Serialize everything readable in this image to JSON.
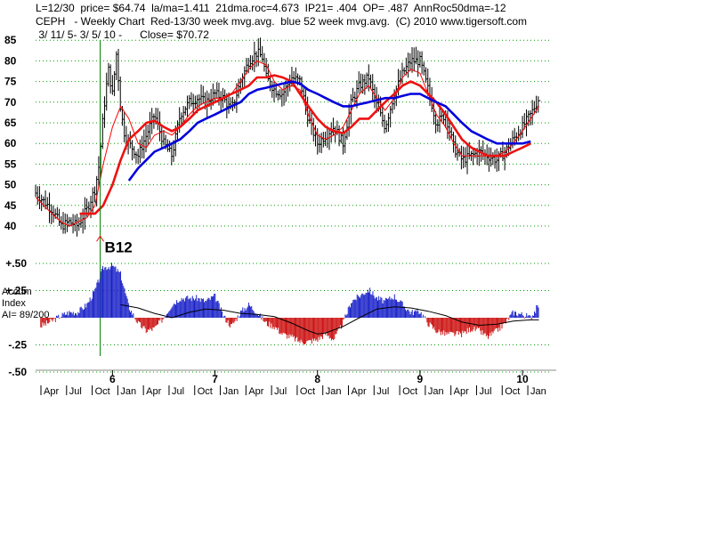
{
  "header": {
    "line1": "L=12/30  price= $64.74  la/ma=1.411  21dma.roc=4.673  IP21= .404  OP= .487  AnnRoc50dma=-12",
    "line2": "CEPH   - Weekly Chart  Red-13/30 week mvg.avg.  blue 52 week mvg.avg.  (C) 2010 www.tigersoft.com",
    "line3": " 3/ 11/ 5- 3/ 5/ 10 -      Close= $70.72"
  },
  "colors": {
    "price": "#000000",
    "ma13": "#ff0000",
    "ma30": "#ee1111",
    "ma52": "#0000dd",
    "accum_pos": "#1a22c8",
    "accum_neg": "#cc1111",
    "signal_line": "#008000",
    "grid": "#00a000"
  },
  "chart_data": [
    {
      "type": "line",
      "title": "",
      "price_ticks": [
        85,
        80,
        75,
        70,
        65,
        60,
        55,
        50,
        45,
        40
      ],
      "ylim": [
        37,
        86
      ],
      "year_labels": [
        {
          "x": 5.92,
          "label": "6"
        },
        {
          "x": 6.92,
          "label": "7"
        },
        {
          "x": 7.92,
          "label": "8"
        },
        {
          "x": 8.92,
          "label": "9"
        },
        {
          "x": 9.92,
          "label": "10"
        }
      ],
      "month_labels": [
        "Apr",
        "Jul",
        "Oct",
        "Jan",
        "Apr",
        "Jul",
        "Oct",
        "Jan",
        "Apr",
        "Jul",
        "Oct",
        "Jan",
        "Apr",
        "Jul",
        "Oct",
        "Jan",
        "Apr",
        "Jul",
        "Oct",
        "Jan"
      ],
      "xlim": [
        5.17,
        10.18
      ],
      "signal": {
        "label": "B12",
        "x": 5.8,
        "price": 38
      },
      "price_close": [
        [
          5.17,
          48
        ],
        [
          5.25,
          46
        ],
        [
          5.33,
          44
        ],
        [
          5.42,
          40
        ],
        [
          5.5,
          41
        ],
        [
          5.58,
          40
        ],
        [
          5.67,
          44
        ],
        [
          5.75,
          49
        ],
        [
          5.79,
          55
        ],
        [
          5.83,
          67
        ],
        [
          5.88,
          78
        ],
        [
          5.92,
          72
        ],
        [
          5.96,
          82
        ],
        [
          6.0,
          68
        ],
        [
          6.04,
          62
        ],
        [
          6.08,
          60
        ],
        [
          6.17,
          57
        ],
        [
          6.25,
          62
        ],
        [
          6.33,
          67
        ],
        [
          6.42,
          60
        ],
        [
          6.5,
          57
        ],
        [
          6.58,
          67
        ],
        [
          6.67,
          70
        ],
        [
          6.75,
          71
        ],
        [
          6.83,
          70
        ],
        [
          6.92,
          72
        ],
        [
          7.0,
          71
        ],
        [
          7.08,
          68
        ],
        [
          7.17,
          75
        ],
        [
          7.25,
          80
        ],
        [
          7.33,
          82
        ],
        [
          7.38,
          81
        ],
        [
          7.42,
          76
        ],
        [
          7.5,
          73
        ],
        [
          7.58,
          72
        ],
        [
          7.67,
          76
        ],
        [
          7.75,
          75
        ],
        [
          7.83,
          66
        ],
        [
          7.92,
          60
        ],
        [
          8.0,
          62
        ],
        [
          8.08,
          64
        ],
        [
          8.17,
          60
        ],
        [
          8.25,
          70
        ],
        [
          8.33,
          74
        ],
        [
          8.42,
          76
        ],
        [
          8.5,
          69
        ],
        [
          8.58,
          64
        ],
        [
          8.67,
          72
        ],
        [
          8.75,
          77
        ],
        [
          8.83,
          80
        ],
        [
          8.92,
          80
        ],
        [
          9.0,
          73
        ],
        [
          9.08,
          65
        ],
        [
          9.17,
          67
        ],
        [
          9.25,
          59
        ],
        [
          9.33,
          56
        ],
        [
          9.42,
          57
        ],
        [
          9.5,
          58
        ],
        [
          9.58,
          57
        ],
        [
          9.67,
          56
        ],
        [
          9.75,
          58
        ],
        [
          9.83,
          61
        ],
        [
          9.92,
          64
        ],
        [
          10.0,
          67
        ],
        [
          10.08,
          71
        ]
      ],
      "ma_13": [
        [
          5.17,
          47
        ],
        [
          5.25,
          45
        ],
        [
          5.33,
          43
        ],
        [
          5.42,
          41
        ],
        [
          5.5,
          40
        ],
        [
          5.58,
          41
        ],
        [
          5.67,
          42
        ],
        [
          5.75,
          45
        ],
        [
          5.83,
          55
        ],
        [
          5.92,
          64
        ],
        [
          6.0,
          69
        ],
        [
          6.08,
          66
        ],
        [
          6.17,
          60
        ],
        [
          6.25,
          59
        ],
        [
          6.33,
          62
        ],
        [
          6.42,
          63
        ],
        [
          6.5,
          62
        ],
        [
          6.58,
          64
        ],
        [
          6.67,
          67
        ],
        [
          6.75,
          69
        ],
        [
          6.83,
          70
        ],
        [
          6.92,
          71
        ],
        [
          7.0,
          71
        ],
        [
          7.08,
          72
        ],
        [
          7.17,
          75
        ],
        [
          7.25,
          78
        ],
        [
          7.33,
          80
        ],
        [
          7.42,
          79
        ],
        [
          7.5,
          75
        ],
        [
          7.58,
          73
        ],
        [
          7.67,
          74
        ],
        [
          7.75,
          73
        ],
        [
          7.83,
          67
        ],
        [
          7.92,
          62
        ],
        [
          8.0,
          61
        ],
        [
          8.08,
          62
        ],
        [
          8.17,
          64
        ],
        [
          8.25,
          68
        ],
        [
          8.33,
          72
        ],
        [
          8.42,
          74
        ],
        [
          8.5,
          71
        ],
        [
          8.58,
          68
        ],
        [
          8.67,
          71
        ],
        [
          8.75,
          76
        ],
        [
          8.83,
          78
        ],
        [
          8.92,
          77
        ],
        [
          9.0,
          72
        ],
        [
          9.08,
          67
        ],
        [
          9.17,
          64
        ],
        [
          9.25,
          60
        ],
        [
          9.33,
          57
        ],
        [
          9.42,
          57
        ],
        [
          9.5,
          57
        ],
        [
          9.58,
          57
        ],
        [
          9.67,
          57
        ],
        [
          9.75,
          58
        ],
        [
          9.83,
          60
        ],
        [
          9.92,
          63
        ],
        [
          10.0,
          66
        ],
        [
          10.08,
          69
        ]
      ],
      "ma_30": [
        [
          5.6,
          43
        ],
        [
          5.67,
          43
        ],
        [
          5.75,
          43
        ],
        [
          5.83,
          45
        ],
        [
          5.92,
          50
        ],
        [
          6.0,
          56
        ],
        [
          6.08,
          61
        ],
        [
          6.17,
          63
        ],
        [
          6.25,
          65
        ],
        [
          6.33,
          65.5
        ],
        [
          6.42,
          64
        ],
        [
          6.5,
          63
        ],
        [
          6.58,
          64
        ],
        [
          6.67,
          66
        ],
        [
          6.75,
          68
        ],
        [
          6.83,
          69
        ],
        [
          6.92,
          70
        ],
        [
          7.0,
          71
        ],
        [
          7.08,
          72
        ],
        [
          7.17,
          73
        ],
        [
          7.25,
          74
        ],
        [
          7.33,
          76
        ],
        [
          7.42,
          76
        ],
        [
          7.5,
          76.5
        ],
        [
          7.58,
          76
        ],
        [
          7.67,
          75
        ],
        [
          7.75,
          72
        ],
        [
          7.83,
          69
        ],
        [
          7.92,
          66
        ],
        [
          8.0,
          64
        ],
        [
          8.08,
          63
        ],
        [
          8.17,
          62.5
        ],
        [
          8.25,
          64
        ],
        [
          8.33,
          66
        ],
        [
          8.42,
          66
        ],
        [
          8.5,
          68
        ],
        [
          8.58,
          70
        ],
        [
          8.67,
          72
        ],
        [
          8.75,
          74
        ],
        [
          8.83,
          75
        ],
        [
          8.92,
          74
        ],
        [
          9.0,
          72
        ],
        [
          9.08,
          70
        ],
        [
          9.17,
          67
        ],
        [
          9.25,
          64
        ],
        [
          9.33,
          61
        ],
        [
          9.42,
          59
        ],
        [
          9.5,
          58
        ],
        [
          9.58,
          57
        ],
        [
          9.67,
          57
        ],
        [
          9.75,
          57
        ],
        [
          9.83,
          58
        ],
        [
          9.92,
          59
        ],
        [
          10.0,
          60
        ]
      ],
      "ma_52": [
        [
          6.08,
          51
        ],
        [
          6.17,
          54
        ],
        [
          6.25,
          56
        ],
        [
          6.33,
          58
        ],
        [
          6.42,
          59
        ],
        [
          6.5,
          60
        ],
        [
          6.58,
          61
        ],
        [
          6.67,
          63
        ],
        [
          6.75,
          65
        ],
        [
          6.83,
          66
        ],
        [
          6.92,
          67
        ],
        [
          7.0,
          68
        ],
        [
          7.08,
          69
        ],
        [
          7.17,
          70
        ],
        [
          7.25,
          72
        ],
        [
          7.33,
          73
        ],
        [
          7.42,
          73.5
        ],
        [
          7.5,
          74
        ],
        [
          7.58,
          74.5
        ],
        [
          7.67,
          75
        ],
        [
          7.75,
          74.5
        ],
        [
          7.83,
          73
        ],
        [
          7.92,
          72
        ],
        [
          8.0,
          71
        ],
        [
          8.08,
          70
        ],
        [
          8.17,
          69
        ],
        [
          8.25,
          69
        ],
        [
          8.33,
          69.5
        ],
        [
          8.42,
          70
        ],
        [
          8.5,
          70.5
        ],
        [
          8.58,
          71
        ],
        [
          8.67,
          71
        ],
        [
          8.75,
          71.5
        ],
        [
          8.83,
          72
        ],
        [
          8.92,
          72
        ],
        [
          9.0,
          71
        ],
        [
          9.08,
          70
        ],
        [
          9.17,
          69
        ],
        [
          9.25,
          67
        ],
        [
          9.33,
          65
        ],
        [
          9.42,
          63
        ],
        [
          9.5,
          62
        ],
        [
          9.58,
          61
        ],
        [
          9.67,
          60
        ],
        [
          9.75,
          60
        ],
        [
          9.83,
          60
        ],
        [
          9.92,
          60
        ],
        [
          10.0,
          60.5
        ]
      ]
    },
    {
      "type": "bar",
      "title": "",
      "label_lines": [
        "Accum",
        "Index"
      ],
      "ai_label": "AI= 89/200",
      "ticks": [
        "+.50",
        "+.25",
        "-.25",
        "-.50"
      ],
      "tick_values": [
        0.5,
        0.25,
        -0.25,
        -0.5
      ],
      "ylim": [
        -0.55,
        0.55
      ],
      "values": [
        [
          5.17,
          -0.1
        ],
        [
          5.33,
          -0.03
        ],
        [
          5.42,
          0.02
        ],
        [
          5.5,
          0.05
        ],
        [
          5.58,
          0.05
        ],
        [
          5.67,
          0.12
        ],
        [
          5.75,
          0.25
        ],
        [
          5.83,
          0.46
        ],
        [
          5.92,
          0.48
        ],
        [
          6.0,
          0.4
        ],
        [
          6.08,
          0.1
        ],
        [
          6.17,
          -0.05
        ],
        [
          6.25,
          -0.12
        ],
        [
          6.33,
          -0.1
        ],
        [
          6.42,
          0.0
        ],
        [
          6.5,
          0.12
        ],
        [
          6.58,
          0.18
        ],
        [
          6.67,
          0.18
        ],
        [
          6.75,
          0.18
        ],
        [
          6.83,
          0.15
        ],
        [
          6.92,
          0.2
        ],
        [
          7.0,
          0.02
        ],
        [
          7.08,
          -0.08
        ],
        [
          7.17,
          0.05
        ],
        [
          7.25,
          0.12
        ],
        [
          7.33,
          0.05
        ],
        [
          7.42,
          -0.05
        ],
        [
          7.5,
          -0.08
        ],
        [
          7.58,
          -0.15
        ],
        [
          7.67,
          -0.18
        ],
        [
          7.75,
          -0.22
        ],
        [
          7.83,
          -0.22
        ],
        [
          7.92,
          -0.2
        ],
        [
          8.0,
          -0.15
        ],
        [
          8.08,
          -0.2
        ],
        [
          8.17,
          -0.05
        ],
        [
          8.25,
          0.15
        ],
        [
          8.33,
          0.2
        ],
        [
          8.42,
          0.26
        ],
        [
          8.5,
          0.18
        ],
        [
          8.58,
          0.15
        ],
        [
          8.67,
          0.2
        ],
        [
          8.75,
          0.12
        ],
        [
          8.83,
          0.05
        ],
        [
          8.92,
          0.06
        ],
        [
          9.0,
          -0.05
        ],
        [
          9.08,
          -0.12
        ],
        [
          9.17,
          -0.15
        ],
        [
          9.25,
          -0.15
        ],
        [
          9.33,
          -0.15
        ],
        [
          9.42,
          -0.1
        ],
        [
          9.5,
          -0.12
        ],
        [
          9.58,
          -0.18
        ],
        [
          9.67,
          -0.12
        ],
        [
          9.75,
          -0.05
        ],
        [
          9.83,
          0.05
        ],
        [
          9.92,
          0.03
        ],
        [
          10.0,
          0.0
        ],
        [
          10.08,
          0.12
        ]
      ],
      "ma": [
        [
          6.0,
          0.12
        ],
        [
          6.17,
          0.09
        ],
        [
          6.33,
          0.04
        ],
        [
          6.5,
          0.0
        ],
        [
          6.67,
          0.05
        ],
        [
          6.83,
          0.08
        ],
        [
          7.0,
          0.07
        ],
        [
          7.17,
          0.04
        ],
        [
          7.33,
          0.03
        ],
        [
          7.5,
          0.01
        ],
        [
          7.67,
          -0.05
        ],
        [
          7.83,
          -0.12
        ],
        [
          7.92,
          -0.15
        ],
        [
          8.0,
          -0.14
        ],
        [
          8.17,
          -0.08
        ],
        [
          8.33,
          0.0
        ],
        [
          8.5,
          0.08
        ],
        [
          8.67,
          0.1
        ],
        [
          8.83,
          0.09
        ],
        [
          9.0,
          0.06
        ],
        [
          9.17,
          0.02
        ],
        [
          9.33,
          -0.04
        ],
        [
          9.5,
          -0.07
        ],
        [
          9.67,
          -0.06
        ],
        [
          9.83,
          -0.03
        ],
        [
          10.0,
          -0.02
        ],
        [
          10.08,
          -0.02
        ]
      ]
    }
  ]
}
